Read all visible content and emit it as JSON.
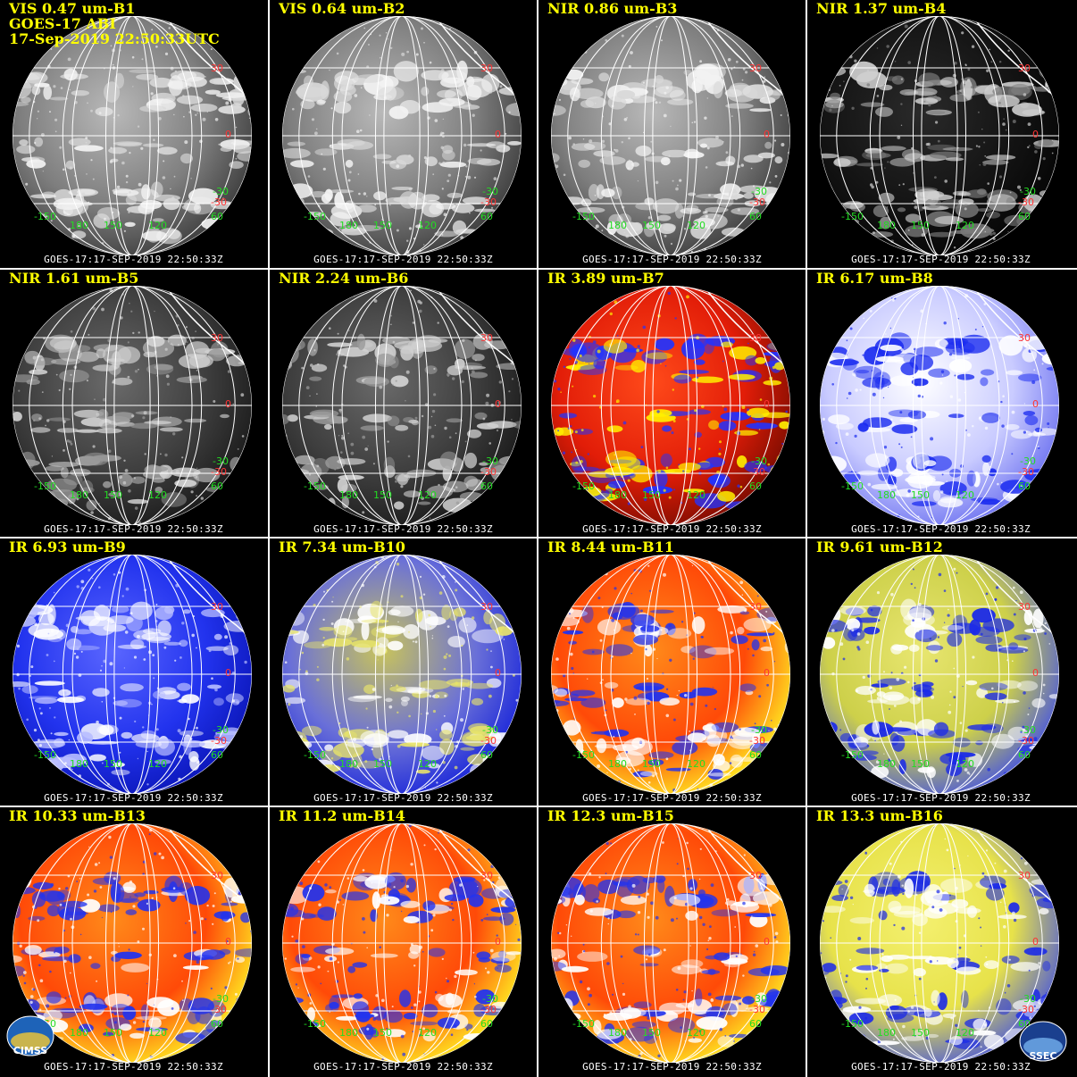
{
  "header": {
    "line2": "GOES-17 ABI",
    "line3": "17-Sep-2019 22:50:33UTC"
  },
  "footer_text": "GOES-17:17-SEP-2019 22:50:33Z",
  "lat_labels": [
    "30",
    "0",
    "-30"
  ],
  "lon_labels": [
    "-150",
    "180",
    "150",
    "120",
    "60"
  ],
  "extra_lat_label": "-30",
  "logos": {
    "left": "CIMSS",
    "right": "SSEC"
  },
  "colors": {
    "label": "#ffff00",
    "lat": "#ff3333",
    "lon": "#22dd22",
    "grid": "#ffffff"
  },
  "panels": [
    {
      "label": "VIS 0.47 um-B1",
      "palette": "gray"
    },
    {
      "label": "VIS 0.64 um-B2",
      "palette": "gray"
    },
    {
      "label": "NIR 0.86 um-B3",
      "palette": "gray"
    },
    {
      "label": "NIR 1.37 um-B4",
      "palette": "dark"
    },
    {
      "label": "NIR 1.61 um-B5",
      "palette": "darkgray"
    },
    {
      "label": "NIR 2.24 um-B6",
      "palette": "darkgray"
    },
    {
      "label": "IR 3.89 um-B7",
      "palette": "hot"
    },
    {
      "label": "IR 6.17 um-B8",
      "palette": "wv-light"
    },
    {
      "label": "IR 6.93 um-B9",
      "palette": "wv"
    },
    {
      "label": "IR 7.34 um-B10",
      "palette": "wv-yellow"
    },
    {
      "label": "IR 8.44 um-B11",
      "palette": "ir"
    },
    {
      "label": "IR 9.61 um-B12",
      "palette": "ozone"
    },
    {
      "label": "IR 10.33 um-B13",
      "palette": "ir"
    },
    {
      "label": "IR 11.2 um-B14",
      "palette": "ir"
    },
    {
      "label": "IR 12.3 um-B15",
      "palette": "ir"
    },
    {
      "label": "IR 13.3 um-B16",
      "palette": "co2"
    }
  ]
}
